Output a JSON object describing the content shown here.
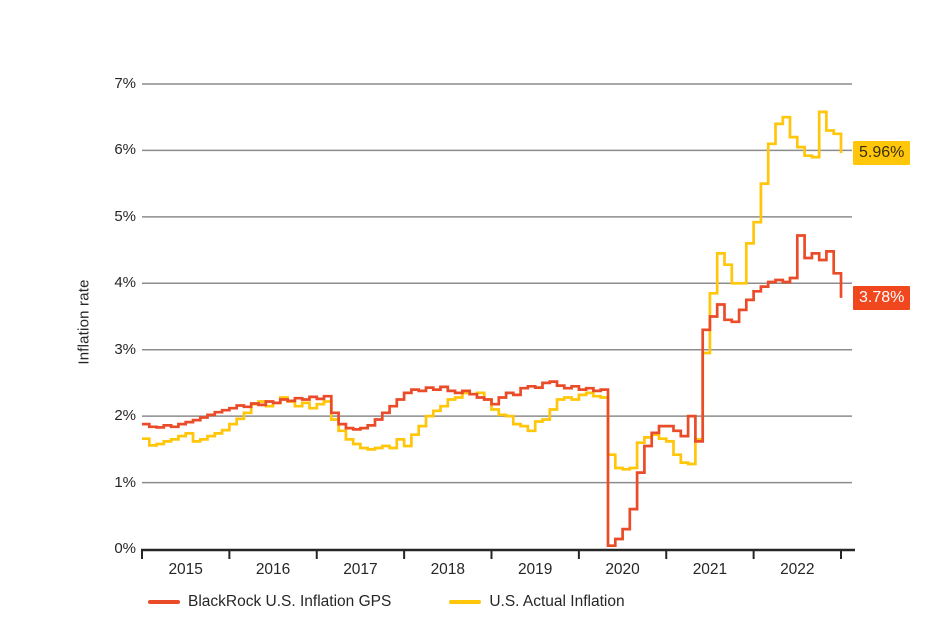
{
  "chart_data": {
    "type": "line",
    "line_style": "step",
    "title": "",
    "xlabel": "",
    "ylabel": "Inflation rate",
    "x_tick_years": [
      "2015",
      "2016",
      "2017",
      "2018",
      "2019",
      "2020",
      "2021",
      "2022"
    ],
    "y_ticks": [
      "0%",
      "1%",
      "2%",
      "3%",
      "4%",
      "5%",
      "6%",
      "7%"
    ],
    "ylim": [
      0,
      7
    ],
    "grid": true,
    "legend_position": "bottom",
    "series": [
      {
        "name": "BlackRock U.S. Inflation GPS",
        "color": "#EA4B28",
        "end_label": "3.78%",
        "end_label_bg": "#F1471F",
        "end_label_color": "#FFFFFF",
        "values": [
          1.88,
          1.84,
          1.83,
          1.86,
          1.84,
          1.88,
          1.91,
          1.94,
          1.98,
          2.02,
          2.06,
          2.09,
          2.12,
          2.16,
          2.14,
          2.19,
          2.17,
          2.22,
          2.2,
          2.25,
          2.23,
          2.27,
          2.25,
          2.29,
          2.26,
          2.3,
          2.05,
          1.88,
          1.82,
          1.8,
          1.82,
          1.86,
          1.95,
          2.05,
          2.15,
          2.25,
          2.35,
          2.4,
          2.38,
          2.43,
          2.4,
          2.44,
          2.38,
          2.35,
          2.38,
          2.33,
          2.28,
          2.25,
          2.18,
          2.28,
          2.35,
          2.32,
          2.42,
          2.45,
          2.43,
          2.5,
          2.52,
          2.46,
          2.42,
          2.45,
          2.4,
          2.42,
          2.38,
          2.4,
          0.05,
          0.15,
          0.3,
          0.6,
          1.15,
          1.55,
          1.75,
          1.85,
          1.85,
          1.78,
          1.7,
          2.0,
          1.62,
          3.3,
          3.5,
          3.68,
          3.45,
          3.42,
          3.6,
          3.75,
          3.88,
          3.95,
          4.02,
          4.05,
          4.02,
          4.08,
          4.72,
          4.38,
          4.45,
          4.35,
          4.48,
          4.15,
          3.78
        ]
      },
      {
        "name": "U.S. Actual Inflation",
        "color": "#FFC60A",
        "end_label": "5.96%",
        "end_label_bg": "#FFC60A",
        "end_label_color": "#38300A",
        "values": [
          1.66,
          1.56,
          1.58,
          1.62,
          1.65,
          1.7,
          1.74,
          1.62,
          1.65,
          1.7,
          1.74,
          1.79,
          1.88,
          1.96,
          2.05,
          2.18,
          2.22,
          2.15,
          2.2,
          2.28,
          2.22,
          2.15,
          2.2,
          2.12,
          2.18,
          2.22,
          1.95,
          1.78,
          1.65,
          1.58,
          1.52,
          1.5,
          1.52,
          1.55,
          1.52,
          1.65,
          1.55,
          1.72,
          1.85,
          2.0,
          2.08,
          2.15,
          2.25,
          2.28,
          2.35,
          2.33,
          2.35,
          2.25,
          2.1,
          2.02,
          2.0,
          1.88,
          1.85,
          1.78,
          1.92,
          1.95,
          2.1,
          2.25,
          2.28,
          2.25,
          2.32,
          2.35,
          2.3,
          2.28,
          1.42,
          1.22,
          1.2,
          1.22,
          1.6,
          1.68,
          1.72,
          1.66,
          1.62,
          1.42,
          1.3,
          1.28,
          1.65,
          2.95,
          3.85,
          4.45,
          4.28,
          4.0,
          4.0,
          4.6,
          4.92,
          5.5,
          6.1,
          6.4,
          6.5,
          6.2,
          6.05,
          5.92,
          5.9,
          6.58,
          6.3,
          6.25,
          5.96
        ]
      }
    ],
    "colors": {
      "grid": "#8C8C8C",
      "axis": "#262626",
      "text": "#262626",
      "background": "#FFFFFF"
    }
  }
}
